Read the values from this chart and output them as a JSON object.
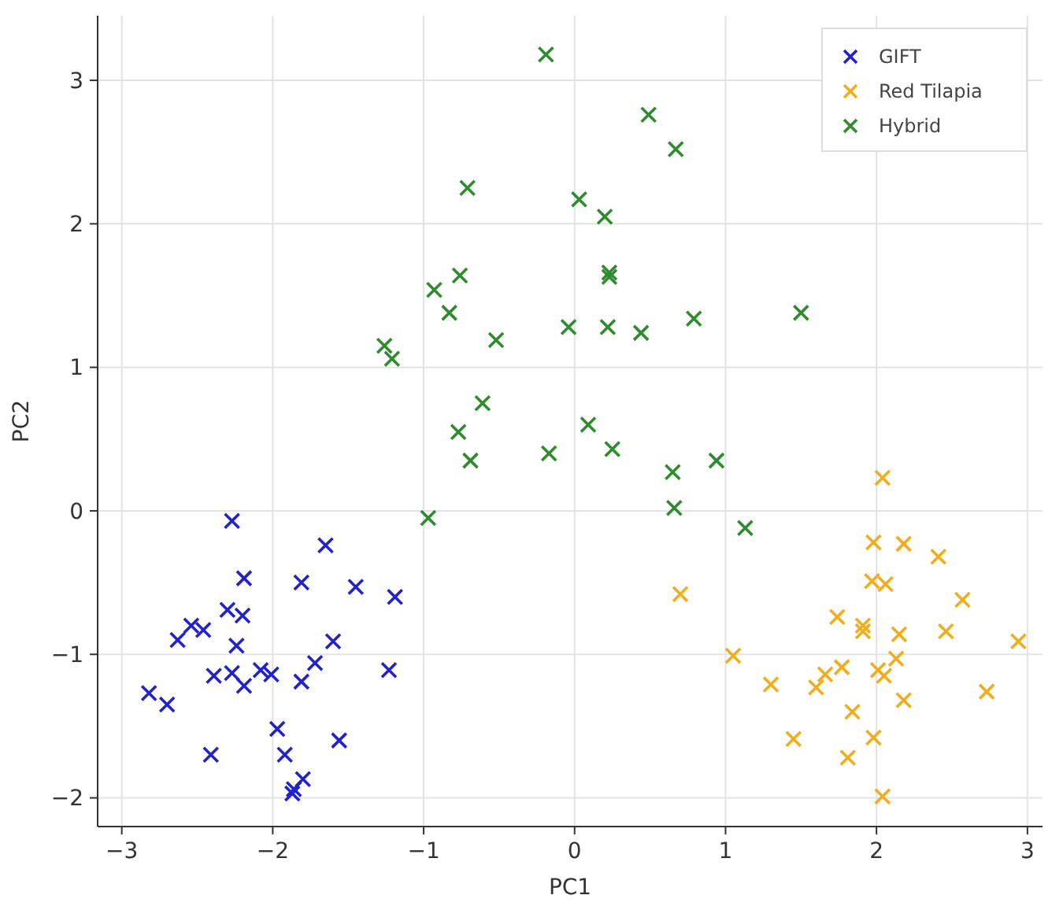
{
  "chart_data": {
    "type": "scatter",
    "xlabel": "PC1",
    "ylabel": "PC2",
    "xlim": [
      -3.16,
      3.1
    ],
    "ylim": [
      -2.2,
      3.45
    ],
    "xticks": [
      -3,
      -2,
      -1,
      0,
      1,
      2,
      3
    ],
    "yticks": [
      -2,
      -1,
      0,
      1,
      2,
      3
    ],
    "grid": true,
    "legend": "top right",
    "marker": "cross",
    "series": [
      {
        "name": "GIFT",
        "color": "#2222cc",
        "x": [
          -2.27,
          -1.65,
          -2.19,
          -1.81,
          -1.45,
          -1.19,
          -2.3,
          -2.2,
          -2.54,
          -2.46,
          -2.63,
          -2.24,
          -1.6,
          -1.72,
          -1.23,
          -2.39,
          -2.27,
          -2.19,
          -2.08,
          -2.01,
          -1.81,
          -2.82,
          -2.7,
          -1.97,
          -1.56,
          -2.41,
          -1.92,
          -1.8,
          -1.86,
          -1.87
        ],
        "values": [
          -0.07,
          -0.24,
          -0.47,
          -0.5,
          -0.53,
          -0.6,
          -0.69,
          -0.73,
          -0.8,
          -0.83,
          -0.9,
          -0.94,
          -0.91,
          -1.06,
          -1.11,
          -1.15,
          -1.13,
          -1.22,
          -1.11,
          -1.14,
          -1.19,
          -1.27,
          -1.35,
          -1.52,
          -1.6,
          -1.7,
          -1.7,
          -1.87,
          -1.94,
          -1.97
        ]
      },
      {
        "name": "Red Tilapia",
        "color": "#f0ad1e",
        "x": [
          2.04,
          1.98,
          2.18,
          2.41,
          1.97,
          2.06,
          0.7,
          2.57,
          1.74,
          1.91,
          1.91,
          2.15,
          2.46,
          2.94,
          1.05,
          2.13,
          1.77,
          1.66,
          2.01,
          2.05,
          1.3,
          1.6,
          2.73,
          2.18,
          1.84,
          1.45,
          1.98,
          1.81,
          2.04
        ],
        "values": [
          0.23,
          -0.22,
          -0.23,
          -0.32,
          -0.49,
          -0.51,
          -0.58,
          -0.62,
          -0.74,
          -0.8,
          -0.84,
          -0.86,
          -0.84,
          -0.91,
          -1.01,
          -1.03,
          -1.09,
          -1.14,
          -1.11,
          -1.15,
          -1.21,
          -1.23,
          -1.26,
          -1.32,
          -1.4,
          -1.59,
          -1.58,
          -1.72,
          -1.99
        ]
      },
      {
        "name": "Hybrid",
        "color": "#2e8b2e",
        "x": [
          -0.19,
          0.49,
          0.67,
          -0.71,
          0.03,
          0.2,
          -0.76,
          0.23,
          0.23,
          -0.93,
          -0.83,
          -0.04,
          0.22,
          0.44,
          0.79,
          1.5,
          -0.52,
          -1.26,
          -1.21,
          -0.61,
          -0.77,
          0.09,
          -0.69,
          -0.17,
          0.25,
          0.65,
          0.94,
          0.66,
          -0.97,
          1.13
        ],
        "values": [
          3.18,
          2.76,
          2.52,
          2.25,
          2.17,
          2.05,
          1.64,
          1.66,
          1.63,
          1.54,
          1.38,
          1.28,
          1.28,
          1.24,
          1.34,
          1.38,
          1.19,
          1.15,
          1.06,
          0.75,
          0.55,
          0.6,
          0.35,
          0.4,
          0.43,
          0.27,
          0.35,
          0.02,
          -0.05,
          -0.12
        ]
      }
    ]
  }
}
